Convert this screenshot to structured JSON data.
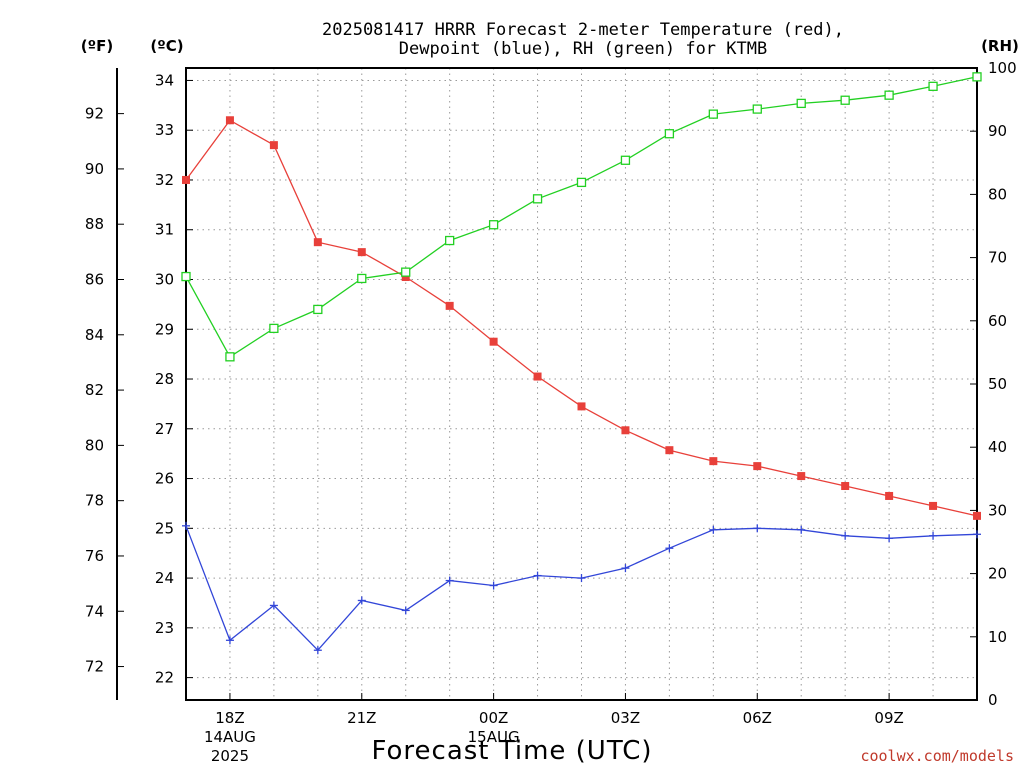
{
  "chart_data": {
    "type": "line",
    "title_line1": "2025081417 HRRR Forecast 2-meter Temperature (red),",
    "title_line2": "Dewpoint (blue), RH (green) for KTMB",
    "xlabel": "Forecast Time (UTC)",
    "credit": "coolwx.com/models",
    "axis_units": {
      "fahrenheit": "(ºF)",
      "celsius": "(ºC)",
      "rh": "(RH)"
    },
    "x_hours_from_start": [
      17,
      18,
      19,
      20,
      21,
      22,
      23,
      24,
      25,
      26,
      27,
      28,
      29,
      30,
      31,
      32,
      33,
      34,
      35
    ],
    "x_ticks": [
      {
        "label": "18Z",
        "hour": 18,
        "sub": [
          "14AUG",
          "2025"
        ]
      },
      {
        "label": "21Z",
        "hour": 21,
        "sub": []
      },
      {
        "label": "00Z",
        "hour": 24,
        "sub": [
          "15AUG"
        ]
      },
      {
        "label": "03Z",
        "hour": 27,
        "sub": []
      },
      {
        "label": "06Z",
        "hour": 30,
        "sub": []
      },
      {
        "label": "09Z",
        "hour": 33,
        "sub": []
      }
    ],
    "xlim": [
      17,
      35
    ],
    "celsius_ticks": [
      22,
      23,
      24,
      25,
      26,
      27,
      28,
      29,
      30,
      31,
      32,
      33,
      34
    ],
    "fahrenheit_ticks": [
      72,
      74,
      76,
      78,
      80,
      82,
      84,
      86,
      88,
      90,
      92
    ],
    "rh_ticks": [
      0,
      10,
      20,
      30,
      40,
      50,
      60,
      70,
      80,
      90,
      100
    ],
    "ylim_celsius": [
      21.55,
      34.25
    ],
    "ylim_rh": [
      0,
      100
    ],
    "grid": true,
    "series": [
      {
        "name": "Temperature",
        "color": "#e8403a",
        "marker": "filled-square",
        "axis": "celsius",
        "values": [
          32.0,
          33.2,
          32.7,
          30.75,
          30.55,
          30.05,
          29.47,
          28.75,
          28.05,
          27.45,
          26.97,
          26.57,
          26.35,
          26.25,
          26.05,
          25.85,
          25.65,
          25.45,
          25.25
        ]
      },
      {
        "name": "Dewpoint",
        "color": "#3246d8",
        "marker": "plus",
        "axis": "celsius",
        "values": [
          25.05,
          22.75,
          23.45,
          22.55,
          23.55,
          23.35,
          23.95,
          23.85,
          24.05,
          24.0,
          24.2,
          24.6,
          24.97,
          25.0,
          24.97,
          24.85,
          24.8,
          24.85,
          24.88
        ]
      },
      {
        "name": "RH",
        "color": "#22d022",
        "marker": "open-square",
        "axis": "rh",
        "values": [
          67,
          54.3,
          58.8,
          61.8,
          66.7,
          67.7,
          72.7,
          75.2,
          79.3,
          81.9,
          85.4,
          89.6,
          92.7,
          93.5,
          94.4,
          94.9,
          95.7,
          97.1,
          98.6
        ]
      }
    ]
  }
}
